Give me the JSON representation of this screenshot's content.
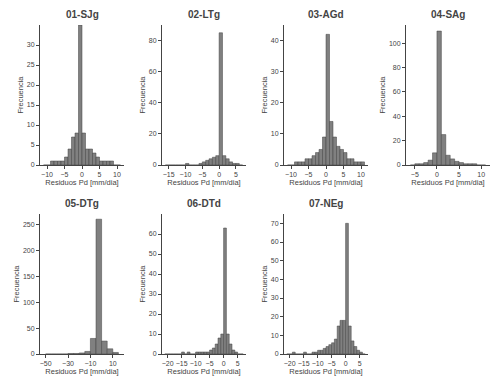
{
  "chart_data": [
    {
      "type": "histogram",
      "title": "01-SJg",
      "x_label": "Residuos Pd [mm/dia]",
      "y_label": "Frecuencia",
      "bins": [
        -11,
        -10,
        -9,
        -8,
        -7,
        -6,
        -5,
        -4,
        -3,
        -2,
        -1,
        0,
        1,
        2,
        3,
        4,
        5,
        6,
        7,
        8,
        9,
        10,
        11
      ],
      "values": [
        0,
        0,
        1,
        1,
        1,
        1,
        2,
        4,
        7,
        8,
        35,
        8,
        4,
        4,
        3,
        2,
        1,
        1,
        1,
        1,
        0,
        0
      ],
      "color": "#808080",
      "xlim": [
        -12,
        12
      ],
      "xticks": [
        -10,
        -5,
        0,
        5,
        10
      ],
      "ylim": [
        0,
        35
      ],
      "yticks": [
        0,
        5,
        10,
        15,
        20,
        25,
        30
      ],
      "grid": false
    },
    {
      "type": "histogram",
      "title": "02-LTg",
      "x_label": "Residuos Pd [mm/dia]",
      "y_label": "Frecuencia",
      "bins": [
        -16,
        -15,
        -14,
        -13,
        -12,
        -11,
        -10,
        -9,
        -8,
        -7,
        -6,
        -5,
        -4,
        -3,
        -2,
        -1,
        0,
        1,
        2,
        3,
        4,
        5,
        6,
        7
      ],
      "values": [
        0,
        0,
        0,
        0,
        0,
        0,
        1,
        0,
        0,
        0,
        1,
        2,
        3,
        4,
        5,
        6,
        85,
        6,
        4,
        2,
        1,
        1,
        0
      ],
      "color": "#808080",
      "xlim": [
        -17,
        8
      ],
      "xticks": [
        -15,
        -10,
        -5,
        0,
        5
      ],
      "ylim": [
        0,
        90
      ],
      "yticks": [
        0,
        20,
        40,
        60,
        80
      ],
      "grid": false
    },
    {
      "type": "histogram",
      "title": "03-AGd",
      "x_label": "Residuos Pd [mm/dia]",
      "y_label": "Frecuencia",
      "bins": [
        -11,
        -10,
        -9,
        -8,
        -7,
        -6,
        -5,
        -4,
        -3,
        -2,
        -1,
        0,
        1,
        2,
        3,
        4,
        5,
        6,
        7,
        8,
        9,
        10,
        11
      ],
      "values": [
        0,
        0,
        1,
        1,
        1,
        2,
        2,
        3,
        4,
        5,
        9,
        42,
        14,
        9,
        6,
        5,
        4,
        2,
        2,
        1,
        1,
        1
      ],
      "color": "#808080",
      "xlim": [
        -12,
        12
      ],
      "xticks": [
        -10,
        -5,
        0,
        5,
        10
      ],
      "ylim": [
        0,
        45
      ],
      "yticks": [
        0,
        10,
        20,
        30,
        40
      ],
      "grid": false
    },
    {
      "type": "histogram",
      "title": "04-SAg",
      "x_label": "Residuos Pd [mm/dia]",
      "y_label": "Frecuencia",
      "bins": [
        -6,
        -5,
        -4,
        -3,
        -2,
        -1,
        0,
        1,
        2,
        3,
        4,
        5,
        6,
        7,
        8,
        9,
        10,
        11
      ],
      "values": [
        0,
        1,
        1,
        2,
        4,
        10,
        110,
        25,
        8,
        5,
        3,
        2,
        1,
        1,
        1,
        0,
        0
      ],
      "color": "#808080",
      "xlim": [
        -7,
        12
      ],
      "xticks": [
        -5,
        0,
        5,
        10
      ],
      "ylim": [
        0,
        115
      ],
      "yticks": [
        0,
        20,
        40,
        60,
        80,
        100
      ],
      "grid": false
    },
    {
      "type": "histogram",
      "title": "05-DTg",
      "x_label": "Residuos Pd [mm/dia]",
      "y_label": "Frecuencia",
      "bins": [
        -50,
        -45,
        -40,
        -35,
        -30,
        -25,
        -20,
        -15,
        -10,
        -5,
        0,
        5,
        10,
        15
      ],
      "values": [
        0,
        0,
        0,
        0,
        1,
        1,
        2,
        5,
        30,
        260,
        25,
        10,
        3
      ],
      "color": "#808080",
      "xlim": [
        -55,
        20
      ],
      "xticks": [
        -50,
        -30,
        -10,
        10
      ],
      "ylim": [
        0,
        270
      ],
      "yticks": [
        0,
        50,
        100,
        150,
        200,
        250
      ],
      "grid": false
    },
    {
      "type": "histogram",
      "title": "06-DTd",
      "x_label": "Residuos Pd [mm/dia]",
      "y_label": "Frecuencia",
      "bins": [
        -21,
        -20,
        -19,
        -18,
        -17,
        -16,
        -15,
        -14,
        -13,
        -12,
        -11,
        -10,
        -9,
        -8,
        -7,
        -6,
        -5,
        -4,
        -3,
        -2,
        -1,
        0,
        1,
        2,
        3,
        4,
        5,
        6,
        7
      ],
      "values": [
        0,
        0,
        0,
        0,
        0,
        0,
        1,
        0,
        1,
        0,
        0,
        1,
        1,
        1,
        1,
        1,
        2,
        3,
        5,
        8,
        10,
        63,
        10,
        5,
        2,
        1,
        0,
        0
      ],
      "color": "#808080",
      "xlim": [
        -22,
        8
      ],
      "xticks": [
        -20,
        -15,
        -10,
        -5,
        0,
        5
      ],
      "ylim": [
        0,
        70
      ],
      "yticks": [
        0,
        10,
        20,
        30,
        40,
        50,
        60
      ],
      "grid": false
    },
    {
      "type": "histogram",
      "title": "07-NEg",
      "x_label": "Residuos Pd [mm/dia]",
      "y_label": "Frecuencia",
      "bins": [
        -21,
        -20,
        -19,
        -18,
        -17,
        -16,
        -15,
        -14,
        -13,
        -12,
        -11,
        -10,
        -9,
        -8,
        -7,
        -6,
        -5,
        -4,
        -3,
        -2,
        -1,
        0,
        1,
        2,
        3,
        4,
        5,
        6,
        7
      ],
      "values": [
        0,
        0,
        1,
        0,
        0,
        0,
        1,
        0,
        0,
        1,
        1,
        2,
        2,
        3,
        4,
        5,
        6,
        8,
        15,
        18,
        18,
        70,
        15,
        7,
        4,
        2,
        1,
        0
      ],
      "color": "#808080",
      "xlim": [
        -22,
        8
      ],
      "xticks": [
        -20,
        -15,
        -10,
        -5,
        0,
        5
      ],
      "ylim": [
        0,
        75
      ],
      "yticks": [
        0,
        10,
        20,
        30,
        40,
        50,
        60,
        70
      ],
      "grid": false
    }
  ]
}
